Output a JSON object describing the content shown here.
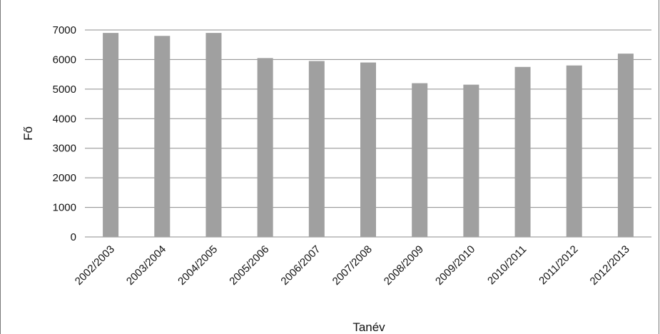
{
  "chart_data": {
    "type": "bar",
    "title": "",
    "xlabel": "Tanév",
    "ylabel": "Fő",
    "categories": [
      "2002/2003",
      "2003/2004",
      "2004/2005",
      "2005/2006",
      "2006/2007",
      "2007/2008",
      "2008/2009",
      "2009/2010",
      "2010/2011",
      "2011/2012",
      "2012/2013"
    ],
    "values": [
      6900,
      6800,
      6900,
      6050,
      5950,
      5900,
      5200,
      5150,
      5750,
      5800,
      6200
    ],
    "ylim": [
      0,
      7000
    ],
    "yticks": [
      0,
      1000,
      2000,
      3000,
      4000,
      5000,
      6000,
      7000
    ],
    "grid": true,
    "legend": "none",
    "colors": {
      "bar": "#a0a0a0",
      "grid": "#8c8c8c",
      "text": "#111111"
    }
  }
}
